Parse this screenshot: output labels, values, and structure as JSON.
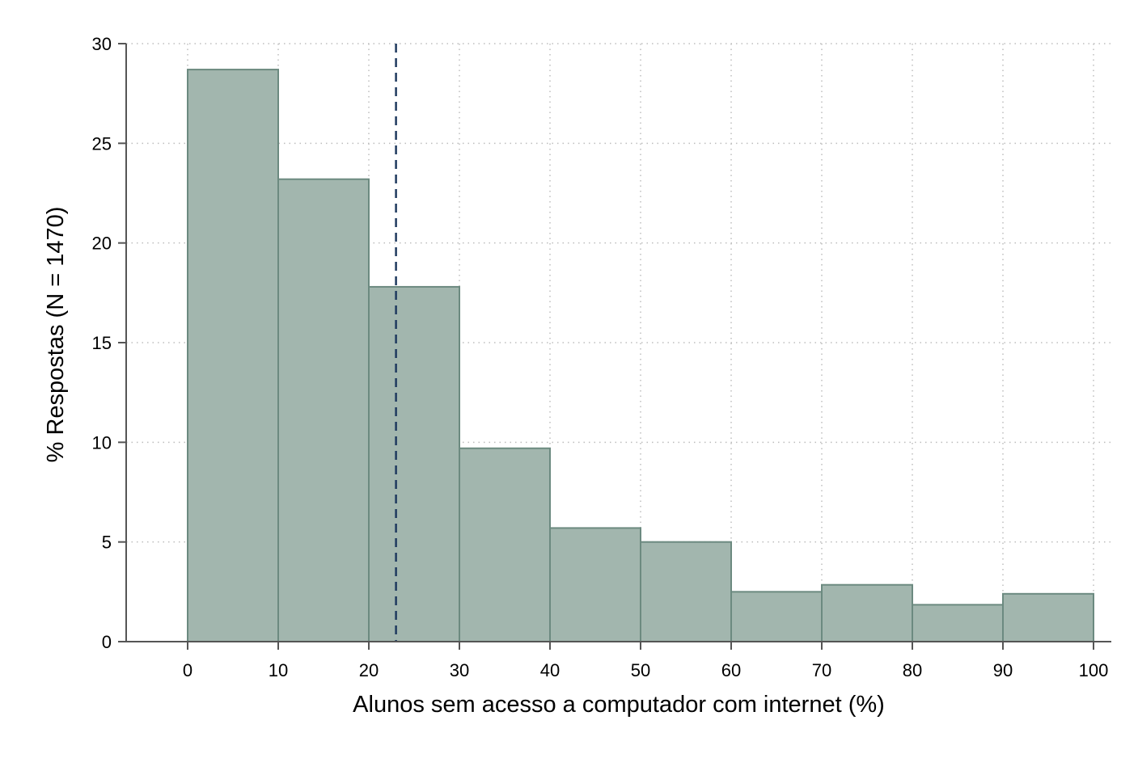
{
  "chart_data": {
    "type": "bar",
    "title": "",
    "xlabel": "Alunos sem acesso a computador com internet (%)",
    "ylabel": "% Respostas (N = 1470)",
    "bins": [
      {
        "from": 0,
        "to": 10,
        "value": 28.7
      },
      {
        "from": 10,
        "to": 20,
        "value": 23.2
      },
      {
        "from": 20,
        "to": 30,
        "value": 17.8
      },
      {
        "from": 30,
        "to": 40,
        "value": 9.7
      },
      {
        "from": 40,
        "to": 50,
        "value": 5.7
      },
      {
        "from": 50,
        "to": 60,
        "value": 5.0
      },
      {
        "from": 60,
        "to": 70,
        "value": 2.5
      },
      {
        "from": 70,
        "to": 80,
        "value": 2.85
      },
      {
        "from": 80,
        "to": 90,
        "value": 1.85
      },
      {
        "from": 90,
        "to": 100,
        "value": 2.4
      }
    ],
    "reference_line": {
      "x": 23,
      "style": "dashed",
      "color": "#1f3a5f"
    },
    "xlim": [
      -7,
      100
    ],
    "ylim": [
      0,
      30
    ],
    "xticks": [
      0,
      10,
      20,
      30,
      40,
      50,
      60,
      70,
      80,
      90,
      100
    ],
    "yticks": [
      0,
      5,
      10,
      15,
      20,
      25,
      30
    ],
    "grid": true,
    "colors": {
      "bar_fill": "#a2b6ae",
      "bar_stroke": "#6c8a80",
      "grid": "#bdbdbd",
      "axis": "#555555"
    }
  }
}
